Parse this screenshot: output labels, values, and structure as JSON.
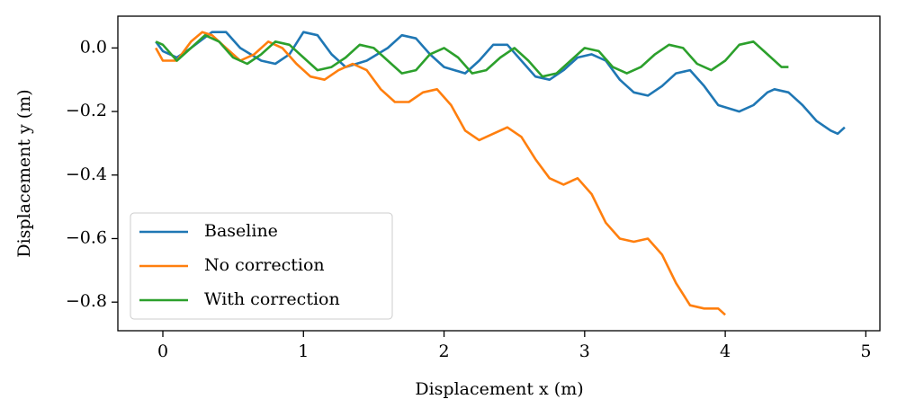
{
  "chart_data": {
    "type": "line",
    "xlabel": "Displacement x (m)",
    "ylabel": "Displacement y (m)",
    "xlim": [
      -0.32,
      5.1
    ],
    "ylim": [
      -0.89,
      0.1
    ],
    "xticks": [
      0,
      1,
      2,
      3,
      4,
      5
    ],
    "yticks": [
      {
        "value": 0,
        "label": "0.0"
      },
      {
        "value": -0.2,
        "label": "−0.2"
      },
      {
        "value": -0.4,
        "label": "−0.4"
      },
      {
        "value": -0.6,
        "label": "−0.6"
      },
      {
        "value": -0.8,
        "label": "−0.8"
      }
    ],
    "grid": false,
    "legend": "lower left",
    "series": [
      {
        "name": "Baseline",
        "color": "#1f77b4",
        "x": [
          -0.05,
          0,
          0.1,
          0.2,
          0.35,
          0.45,
          0.55,
          0.7,
          0.8,
          0.9,
          1.0,
          1.1,
          1.2,
          1.3,
          1.45,
          1.6,
          1.7,
          1.8,
          1.9,
          2.0,
          2.15,
          2.25,
          2.35,
          2.45,
          2.55,
          2.65,
          2.75,
          2.85,
          2.95,
          3.05,
          3.15,
          3.25,
          3.35,
          3.45,
          3.55,
          3.65,
          3.75,
          3.85,
          3.95,
          4.1,
          4.2,
          4.3,
          4.35,
          4.45,
          4.55,
          4.65,
          4.75,
          4.8,
          4.85
        ],
        "values": [
          0.02,
          -0.01,
          -0.03,
          0.0,
          0.05,
          0.05,
          0.0,
          -0.04,
          -0.05,
          -0.02,
          0.05,
          0.04,
          -0.02,
          -0.06,
          -0.04,
          0.0,
          0.04,
          0.03,
          -0.02,
          -0.06,
          -0.08,
          -0.04,
          0.01,
          0.01,
          -0.04,
          -0.09,
          -0.1,
          -0.07,
          -0.03,
          -0.02,
          -0.04,
          -0.1,
          -0.14,
          -0.15,
          -0.12,
          -0.08,
          -0.07,
          -0.12,
          -0.18,
          -0.2,
          -0.18,
          -0.14,
          -0.13,
          -0.14,
          -0.18,
          -0.23,
          -0.26,
          -0.27,
          -0.25
        ]
      },
      {
        "name": "No correction",
        "color": "#ff7f0e",
        "x": [
          -0.05,
          0,
          0.1,
          0.2,
          0.28,
          0.35,
          0.45,
          0.55,
          0.65,
          0.75,
          0.85,
          0.95,
          1.05,
          1.15,
          1.25,
          1.35,
          1.45,
          1.55,
          1.65,
          1.75,
          1.85,
          1.95,
          2.05,
          2.15,
          2.25,
          2.35,
          2.45,
          2.55,
          2.65,
          2.75,
          2.85,
          2.95,
          3.05,
          3.15,
          3.25,
          3.35,
          3.45,
          3.55,
          3.65,
          3.75,
          3.85,
          3.95,
          4.0
        ],
        "values": [
          0.0,
          -0.04,
          -0.04,
          0.02,
          0.05,
          0.04,
          0.0,
          -0.04,
          -0.02,
          0.02,
          0.0,
          -0.05,
          -0.09,
          -0.1,
          -0.07,
          -0.05,
          -0.07,
          -0.13,
          -0.17,
          -0.17,
          -0.14,
          -0.13,
          -0.18,
          -0.26,
          -0.29,
          -0.27,
          -0.25,
          -0.28,
          -0.35,
          -0.41,
          -0.43,
          -0.41,
          -0.46,
          -0.55,
          -0.6,
          -0.61,
          -0.6,
          -0.65,
          -0.74,
          -0.81,
          -0.82,
          -0.82,
          -0.84
        ]
      },
      {
        "name": "With correction",
        "color": "#2ca02c",
        "x": [
          -0.05,
          0,
          0.1,
          0.2,
          0.3,
          0.4,
          0.5,
          0.6,
          0.7,
          0.8,
          0.9,
          1.0,
          1.1,
          1.2,
          1.3,
          1.4,
          1.5,
          1.6,
          1.7,
          1.8,
          1.9,
          2.0,
          2.1,
          2.2,
          2.3,
          2.4,
          2.5,
          2.6,
          2.7,
          2.8,
          2.9,
          3.0,
          3.1,
          3.2,
          3.3,
          3.4,
          3.5,
          3.6,
          3.7,
          3.8,
          3.9,
          4.0,
          4.1,
          4.2,
          4.3,
          4.4,
          4.45
        ],
        "values": [
          0.02,
          0.01,
          -0.04,
          0.0,
          0.04,
          0.02,
          -0.03,
          -0.05,
          -0.02,
          0.02,
          0.01,
          -0.03,
          -0.07,
          -0.06,
          -0.03,
          0.01,
          0.0,
          -0.04,
          -0.08,
          -0.07,
          -0.02,
          0.0,
          -0.03,
          -0.08,
          -0.07,
          -0.03,
          0.0,
          -0.04,
          -0.09,
          -0.08,
          -0.04,
          0.0,
          -0.01,
          -0.06,
          -0.08,
          -0.06,
          -0.02,
          0.01,
          0.0,
          -0.05,
          -0.07,
          -0.04,
          0.01,
          0.02,
          -0.02,
          -0.06,
          -0.06
        ]
      }
    ]
  }
}
